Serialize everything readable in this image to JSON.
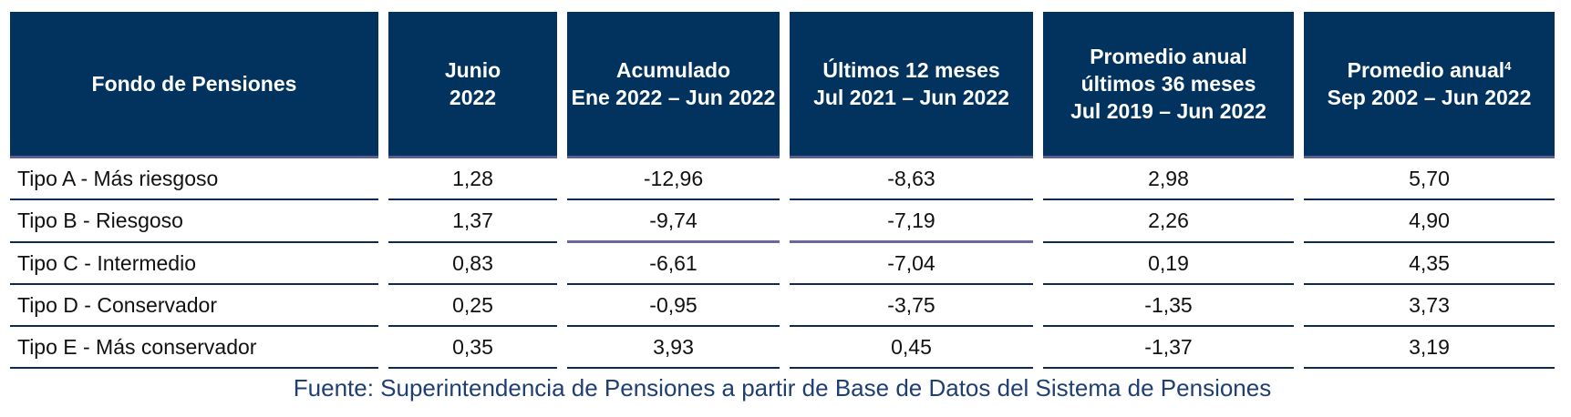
{
  "table": {
    "headers": [
      {
        "line1": "Fondo de Pensiones",
        "line2": "",
        "line3": ""
      },
      {
        "line1": "Junio",
        "line2": "2022",
        "line3": ""
      },
      {
        "line1": "Acumulado",
        "line2": "Ene 2022 – Jun 2022",
        "line3": ""
      },
      {
        "line1": "Últimos 12 meses",
        "line2": "Jul 2021 – Jun 2022",
        "line3": ""
      },
      {
        "line1": "Promedio anual",
        "line2": "últimos 36 meses",
        "line3": "Jul 2019 – Jun 2022"
      },
      {
        "line1": "Promedio anual",
        "sup": "4",
        "line2": "Sep 2002 – Jun 2022",
        "line3": ""
      }
    ],
    "rows": [
      [
        "Tipo A - Más riesgoso",
        "1,28",
        "-12,96",
        "-8,63",
        "2,98",
        "5,70"
      ],
      [
        "Tipo B - Riesgoso",
        "1,37",
        "-9,74",
        "-7,19",
        "2,26",
        "4,90"
      ],
      [
        "Tipo C - Intermedio",
        "0,83",
        "-6,61",
        "-7,04",
        "0,19",
        "4,35"
      ],
      [
        "Tipo D - Conservador",
        "0,25",
        "-0,95",
        "-3,75",
        "-1,35",
        "3,73"
      ],
      [
        "Tipo E - Más conservador",
        "0,35",
        "3,93",
        "0,45",
        "-1,37",
        "3,19"
      ]
    ]
  },
  "footer": "Fuente: Superintendencia de Pensiones a partir de Base de Datos del Sistema de Pensiones",
  "colors": {
    "header_bg": "#02335f",
    "footer_text": "#1f3f73",
    "row_border": "#0d2b52"
  }
}
